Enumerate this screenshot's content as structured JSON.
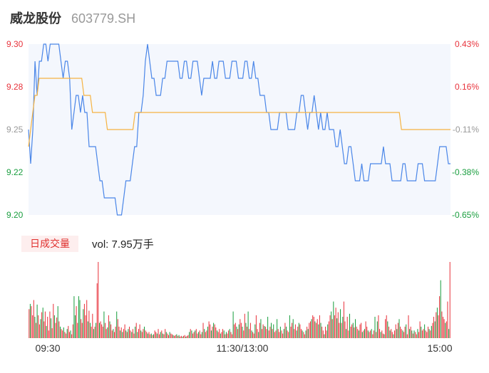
{
  "header": {
    "name": "威龙股份",
    "code": "603779.SH"
  },
  "volume_panel": {
    "badge": "日成交量",
    "vol_text": "vol: 7.95万手"
  },
  "colors": {
    "price_line": "#4a86e8",
    "avg_line": "#f5b342",
    "up": "#e8333c",
    "down": "#1a9e3f",
    "flat": "#999999",
    "area": "#f4f7fd"
  },
  "chart_data": [
    {
      "type": "line",
      "title": "",
      "ylim": [
        9.2,
        9.3
      ],
      "y_ticks": [
        "9.30",
        "9.28",
        "9.25",
        "9.22",
        "9.20"
      ],
      "pct_ticks": [
        "0.43%",
        "0.16%",
        "-0.11%",
        "-0.38%",
        "-0.65%"
      ],
      "x_ticks": [
        "09:30",
        "11:30/13:00",
        "15:00"
      ],
      "series": [
        {
          "role": "price",
          "values": [
            9.25,
            9.23,
            9.25,
            9.29,
            9.27,
            9.29,
            9.29,
            9.3,
            9.3,
            9.29,
            9.3,
            9.3,
            9.3,
            9.3,
            9.3,
            9.29,
            9.28,
            9.29,
            9.29,
            9.28,
            9.25,
            9.26,
            9.27,
            9.27,
            9.26,
            9.27,
            9.26,
            9.26,
            9.24,
            9.24,
            9.24,
            9.24,
            9.23,
            9.22,
            9.22,
            9.21,
            9.21,
            9.21,
            9.21,
            9.21,
            9.21,
            9.2,
            9.2,
            9.2,
            9.21,
            9.22,
            9.22,
            9.22,
            9.23,
            9.24,
            9.24,
            9.26,
            9.26,
            9.27,
            9.29,
            9.3,
            9.29,
            9.28,
            9.28,
            9.27,
            9.27,
            9.27,
            9.28,
            9.28,
            9.29,
            9.29,
            9.29,
            9.29,
            9.29,
            9.29,
            9.28,
            9.28,
            9.29,
            9.29,
            9.28,
            9.28,
            9.29,
            9.29,
            9.29,
            9.28,
            9.27,
            9.28,
            9.28,
            9.28,
            9.28,
            9.29,
            9.28,
            9.28,
            9.29,
            9.29,
            9.29,
            9.28,
            9.28,
            9.28,
            9.29,
            9.29,
            9.29,
            9.28,
            9.28,
            9.28,
            9.29,
            9.29,
            9.28,
            9.28,
            9.29,
            9.28,
            9.28,
            9.27,
            9.27,
            9.27,
            9.26,
            9.26,
            9.25,
            9.25,
            9.25,
            9.25,
            9.26,
            9.26,
            9.26,
            9.26,
            9.25,
            9.25,
            9.25,
            9.25,
            9.26,
            9.26,
            9.27,
            9.27,
            9.26,
            9.25,
            9.26,
            9.26,
            9.27,
            9.26,
            9.25,
            9.26,
            9.25,
            9.25,
            9.26,
            9.25,
            9.25,
            9.25,
            9.24,
            9.24,
            9.25,
            9.24,
            9.23,
            9.23,
            9.24,
            9.24,
            9.23,
            9.22,
            9.22,
            9.22,
            9.23,
            9.22,
            9.22,
            9.22,
            9.23,
            9.23,
            9.23,
            9.23,
            9.23,
            9.23,
            9.24,
            9.23,
            9.23,
            9.23,
            9.22,
            9.22,
            9.22,
            9.22,
            9.22,
            9.23,
            9.23,
            9.22,
            9.22,
            9.22,
            9.22,
            9.22,
            9.23,
            9.23,
            9.23,
            9.22,
            9.22,
            9.22,
            9.22,
            9.22,
            9.22,
            9.23,
            9.24,
            9.24,
            9.24,
            9.24,
            9.23,
            9.23
          ]
        },
        {
          "role": "average",
          "values": [
            9.24,
            9.25,
            9.26,
            9.27,
            9.27,
            9.28,
            9.28,
            9.28,
            9.28,
            9.28,
            9.28,
            9.28,
            9.28,
            9.28,
            9.28,
            9.28,
            9.28,
            9.28,
            9.28,
            9.28,
            9.28,
            9.28,
            9.28,
            9.28,
            9.28,
            9.28,
            9.27,
            9.27,
            9.27,
            9.27,
            9.26,
            9.26,
            9.26,
            9.26,
            9.26,
            9.26,
            9.26,
            9.25,
            9.25,
            9.25,
            9.25,
            9.25,
            9.25,
            9.25,
            9.25,
            9.25,
            9.25,
            9.25,
            9.25,
            9.25,
            9.26,
            9.26,
            9.26,
            9.26,
            9.26,
            9.26,
            9.26,
            9.26,
            9.26,
            9.26,
            9.26,
            9.26,
            9.26,
            9.26,
            9.26,
            9.26,
            9.26,
            9.26,
            9.26,
            9.26,
            9.26,
            9.26,
            9.26,
            9.26,
            9.26,
            9.26,
            9.26,
            9.26,
            9.26,
            9.26,
            9.26,
            9.26,
            9.26,
            9.26,
            9.26,
            9.26,
            9.26,
            9.26,
            9.26,
            9.26,
            9.26,
            9.26,
            9.26,
            9.26,
            9.26,
            9.26,
            9.26,
            9.26,
            9.26,
            9.26,
            9.26,
            9.26,
            9.26,
            9.26,
            9.26,
            9.26,
            9.26,
            9.26,
            9.26,
            9.26,
            9.26,
            9.26,
            9.26,
            9.26,
            9.26,
            9.26,
            9.26,
            9.26,
            9.26,
            9.26,
            9.26,
            9.26,
            9.26,
            9.26,
            9.26,
            9.26,
            9.26,
            9.26,
            9.26,
            9.26,
            9.26,
            9.26,
            9.26,
            9.26,
            9.26,
            9.26,
            9.26,
            9.26,
            9.26,
            9.26,
            9.26,
            9.26,
            9.26,
            9.26,
            9.26,
            9.26,
            9.26,
            9.26,
            9.26,
            9.26,
            9.26,
            9.26,
            9.26,
            9.26,
            9.26,
            9.26,
            9.26,
            9.26,
            9.26,
            9.26,
            9.26,
            9.26,
            9.26,
            9.26,
            9.26,
            9.26,
            9.26,
            9.26,
            9.26,
            9.26,
            9.26,
            9.26,
            9.26,
            9.26,
            9.26,
            9.25,
            9.25,
            9.25,
            9.25,
            9.25,
            9.25,
            9.25,
            9.25,
            9.25,
            9.25,
            9.25,
            9.25,
            9.25,
            9.25,
            9.25,
            9.25,
            9.25,
            9.25,
            9.25,
            9.25,
            9.25,
            9.25,
            9.25,
            9.25
          ]
        }
      ]
    },
    {
      "type": "bar",
      "title": "",
      "ylim": [
        0,
        1
      ],
      "values": [
        0.38,
        0.45,
        0.42,
        0.3,
        0.5,
        0.28,
        0.2,
        0.44,
        0.3,
        0.18,
        0.25,
        0.34,
        0.4,
        0.22,
        0.35,
        0.16,
        0.28,
        0.1,
        0.35,
        0.26,
        0.13,
        0.45,
        0.3,
        0.2,
        0.27,
        0.42,
        0.22,
        0.15,
        0.12,
        0.1,
        0.14,
        0.08,
        0.06,
        0.12,
        0.16,
        0.08,
        0.1,
        0.05,
        0.18,
        0.55,
        0.3,
        0.42,
        0.2,
        0.55,
        0.5,
        0.25,
        0.2,
        0.38,
        0.45,
        0.3,
        0.5,
        0.22,
        0.36,
        0.2,
        0.15,
        0.32,
        0.12,
        0.15,
        0.2,
        0.72,
        1.0,
        0.2,
        0.22,
        0.18,
        0.15,
        0.35,
        0.2,
        0.12,
        0.14,
        0.3,
        0.22,
        0.18,
        0.1,
        0.12,
        0.08,
        0.15,
        0.35,
        0.25,
        0.15,
        0.1,
        0.14,
        0.08,
        0.12,
        0.18,
        0.1,
        0.08,
        0.12,
        0.15,
        0.1,
        0.08,
        0.12,
        0.06,
        0.15,
        0.2,
        0.08,
        0.12,
        0.18,
        0.1,
        0.08,
        0.12,
        0.15,
        0.1,
        0.08,
        0.06,
        0.08,
        0.05,
        0.06,
        0.04,
        0.05,
        0.1,
        0.08,
        0.06,
        0.12,
        0.05,
        0.08,
        0.1,
        0.06,
        0.05,
        0.12,
        0.08,
        0.06,
        0.04,
        0.08,
        0.06,
        0.05,
        0.04,
        0.03,
        0.04,
        0.05,
        0.03,
        0.04,
        0.02,
        0.03,
        0.02,
        0.03,
        0.04,
        0.02,
        0.03,
        0.04,
        0.08,
        0.12,
        0.1,
        0.06,
        0.08,
        0.1,
        0.12,
        0.06,
        0.08,
        0.1,
        0.05,
        0.08,
        0.2,
        0.12,
        0.08,
        0.1,
        0.15,
        0.22,
        0.18,
        0.1,
        0.15,
        0.2,
        0.18,
        0.14,
        0.1,
        0.08,
        0.12,
        0.06,
        0.08,
        0.12,
        0.1,
        0.05,
        0.08,
        0.06,
        0.1,
        0.12,
        0.08,
        0.05,
        0.35,
        0.18,
        0.2,
        0.15,
        0.12,
        0.18,
        0.25,
        0.2,
        0.15,
        0.1,
        0.32,
        0.2,
        0.15,
        0.35,
        0.12,
        0.2,
        0.1,
        0.08,
        0.06,
        0.18,
        0.3,
        0.12,
        0.08,
        0.2,
        0.25,
        0.12,
        0.18,
        0.16,
        0.15,
        0.12,
        0.28,
        0.1,
        0.15,
        0.2,
        0.12,
        0.18,
        0.08,
        0.1,
        0.25,
        0.12,
        0.08,
        0.15,
        0.1,
        0.06,
        0.12,
        0.2,
        0.15,
        0.1,
        0.08,
        0.3,
        0.15,
        0.2,
        0.25,
        0.12,
        0.18,
        0.1,
        0.15,
        0.2,
        0.18,
        0.12,
        0.1,
        0.08,
        0.05,
        0.1,
        0.15,
        0.12,
        0.2,
        0.22,
        0.25,
        0.3,
        0.28,
        0.22,
        0.2,
        0.25,
        0.18,
        0.3,
        0.2,
        0.15,
        0.1,
        0.05,
        0.15,
        0.1,
        0.18,
        0.22,
        0.3,
        0.35,
        0.25,
        0.48,
        0.3,
        0.4,
        0.26,
        0.34,
        0.2,
        0.38,
        0.2,
        0.28,
        0.48,
        0.22,
        0.12,
        0.28,
        0.1,
        0.32,
        0.15,
        0.18,
        0.2,
        0.14,
        0.25,
        0.15,
        0.12,
        0.1,
        0.18,
        0.2,
        0.08,
        0.1,
        0.12,
        0.22,
        0.15,
        0.1,
        0.08,
        0.1,
        0.12,
        0.05,
        0.1,
        0.28,
        0.08,
        0.22,
        0.3,
        0.12,
        0.08,
        0.1,
        0.06,
        0.05,
        0.25,
        0.3,
        0.22,
        0.15,
        0.1,
        0.12,
        0.08,
        0.05,
        0.1,
        0.18,
        0.12,
        0.2,
        0.25,
        0.15,
        0.12,
        0.1,
        0.08,
        0.15,
        0.18,
        0.05,
        0.3,
        0.12,
        0.15,
        0.1,
        0.06,
        0.1,
        0.08,
        0.05,
        0.12,
        0.08,
        0.22,
        0.15,
        0.1,
        0.12,
        0.18,
        0.1,
        0.08,
        0.15,
        0.12,
        0.1,
        0.16,
        0.2,
        0.28,
        0.22,
        0.34,
        0.4,
        0.3,
        0.55,
        0.76,
        0.35,
        0.28,
        0.25,
        0.2,
        0.22,
        0.48,
        0.12,
        1.0
      ],
      "colors": "up,down,up,up,up,down,up,down,up,up,down,up,down,up,up,down,up,up,up,down,up,up,down,up,up,down,up,down,up,up,down,up,up,down,up,up,down,up,up,down,down,up,up,down,down,up,up,down,up,up,up,down,up,down,up,up,down,up,down,up,up,down,up,up,up,down,up,up,down,up,down,up,up,down,up,up,down,up,up,down,up,down,up,up,down,up,down,up,up,down,up,up,down,up,down,up,up,down,up,up,down,up,up,down,up,up,down,up,down,up,up,down,up,up,down,up,down,up,up,down,up,up,down,up,up,down,up,up,down,up,down,up,up,down,up,up,down,up,up,down,up,down,up,up,down,up,up,down,up,up,down,up,down,up,up,down,up,up,down,up,down,up,up,down,up,up,down,up,up,down,up,down,up,up,down,up,up,down,up,up,down,up,down,up,up,down,up,up,down,up,down,up,up,down,up,up,down,up,up,down,up,down,up,up,down,up,up,down,up,up,down,up,down,up,up,down,up,up,down,up,up,down,up,down,up,up,down,up,up,down,up,up,down,up,down,up,up,down,up,up,down,up,down,up,up,down,up,up,down,up,up,down,up,down,up,up,down,up,up,down,up,up,down,up,down,up,up,down,up,up,down,up,down,up,up,down,up,up,down,up,up,down,up,down,up,up,down,up,up,down,up,down,up,up,down,up,up,down,up,up,down,up,down,up,up,down,up,up,down,up,up,down,up,down,up,up,down,up,up,down,up,down,up,up,down,up,up,down,up,up,down,up,down,up,down,up,up,down,up,up,down,up"
    }
  ]
}
